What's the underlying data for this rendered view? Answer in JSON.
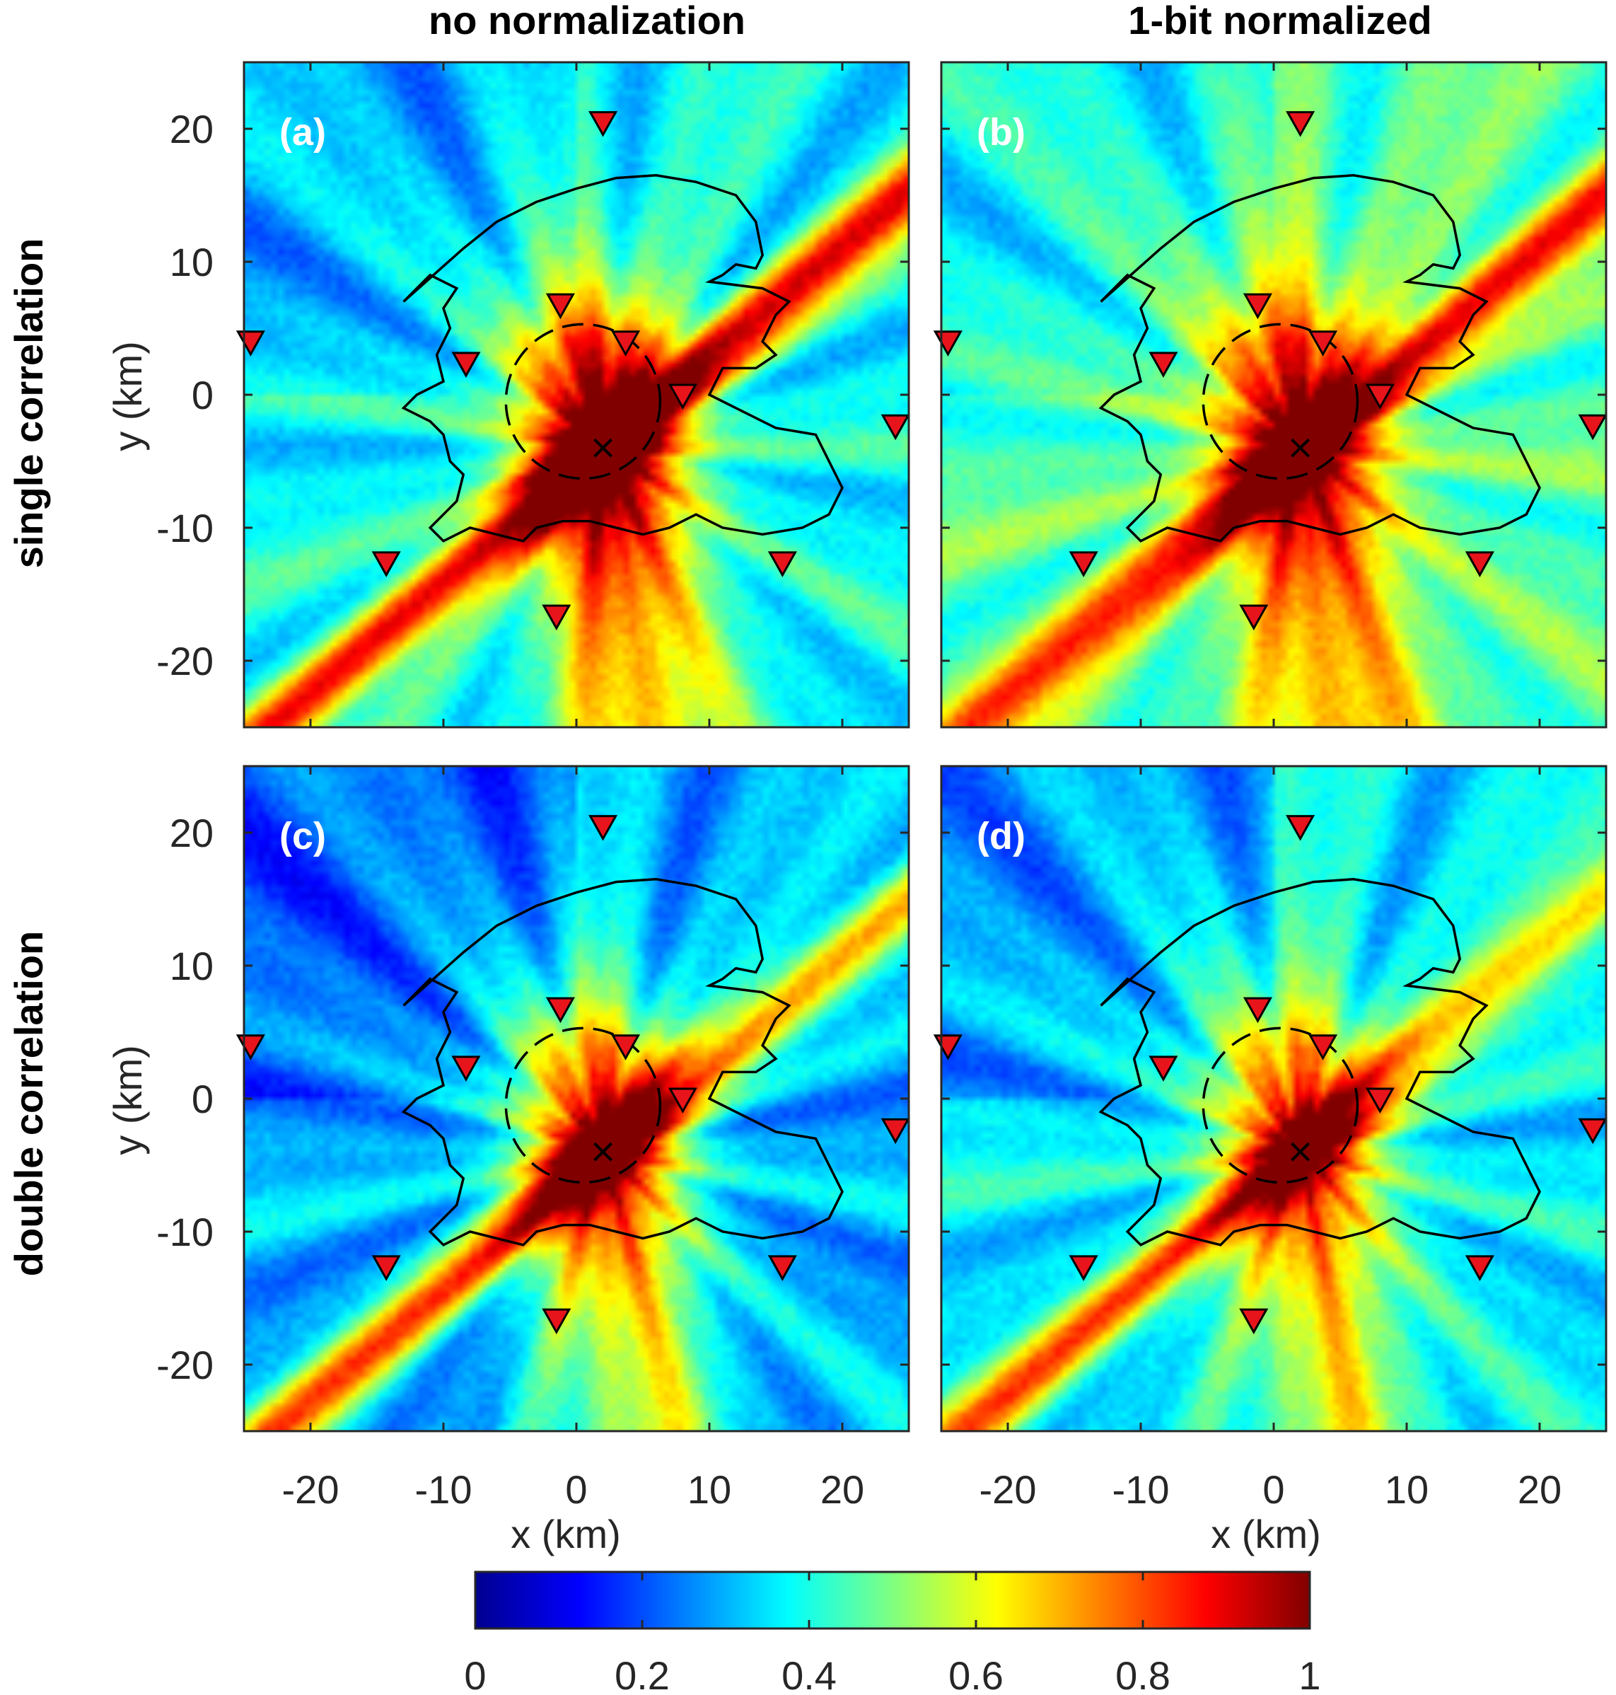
{
  "chart_data": {
    "type": "heatmap",
    "column_titles": [
      "no normalization",
      "1-bit normalized"
    ],
    "row_titles": [
      "single correlation",
      "double correlation"
    ],
    "xlabel": "x (km)",
    "ylabel": "y (km)",
    "xlim": [
      -25,
      25
    ],
    "ylim": [
      -25,
      25
    ],
    "xticks": [
      -20,
      -10,
      0,
      10,
      20
    ],
    "yticks": [
      -20,
      -10,
      0,
      10,
      20
    ],
    "xtick_labels": [
      "-20",
      "-10",
      "0",
      "10",
      "20"
    ],
    "ytick_labels": [
      "-20",
      "-10",
      "0",
      "10",
      "20"
    ],
    "colormap": "jet",
    "colorbar": {
      "range": [
        0,
        1
      ],
      "ticks": [
        0,
        0.2,
        0.4,
        0.6,
        0.8,
        1
      ],
      "tick_labels": [
        "0",
        "0.2",
        "0.4",
        "0.6",
        "0.8",
        "1"
      ]
    },
    "panels": [
      {
        "label": "(a)",
        "row": "single correlation",
        "column": "no normalization",
        "max_location": [
          2,
          -4
        ],
        "background_level": 0.38,
        "beam_strength": 0.95
      },
      {
        "label": "(b)",
        "row": "single correlation",
        "column": "1-bit normalized",
        "max_location": [
          2,
          -4
        ],
        "background_level": 0.46,
        "beam_strength": 0.75
      },
      {
        "label": "(c)",
        "row": "double correlation",
        "column": "no normalization",
        "max_location": [
          2,
          -4
        ],
        "background_level": 0.3,
        "beam_strength": 0.85
      },
      {
        "label": "(d)",
        "row": "double correlation",
        "column": "1-bit normalized",
        "max_location": [
          2,
          -4
        ],
        "background_level": 0.36,
        "beam_strength": 0.7
      }
    ],
    "stations": [
      [
        2.0,
        20.5
      ],
      [
        -1.2,
        6.8
      ],
      [
        3.7,
        4.0
      ],
      [
        -8.3,
        2.4
      ],
      [
        8.0,
        0.0
      ],
      [
        -24.5,
        4.0
      ],
      [
        24.0,
        -2.3
      ],
      [
        -14.3,
        -12.6
      ],
      [
        15.5,
        -12.6
      ],
      [
        -1.5,
        -16.6
      ]
    ],
    "source_marker": [
      2.0,
      -4.0
    ],
    "station_color": "#e8141c",
    "outline_color": "#000000",
    "font_colors": {
      "panel_label": "#ffffff",
      "tick": "#262626"
    }
  }
}
